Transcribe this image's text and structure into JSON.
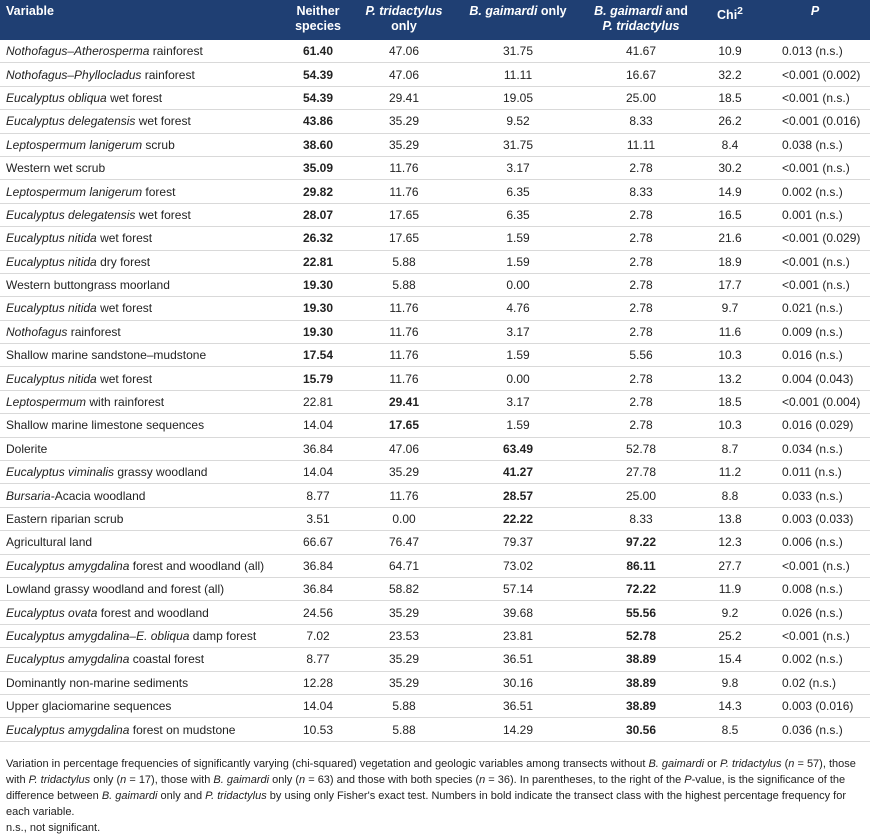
{
  "headers": [
    {
      "html": "Variable"
    },
    {
      "html": "Neither<br>species"
    },
    {
      "html": "<i>P. tridactylus</i><br>only"
    },
    {
      "html": "<i>B. gaimardi</i> only"
    },
    {
      "html": "<i>B. gaimardi</i> and<br><i>P. tridactylus</i>"
    },
    {
      "html": "Chi<sup>2</sup>"
    },
    {
      "html": "<i>P</i>"
    }
  ],
  "rows": [
    {
      "var": "<i>Nothofagus–Atherosperma</i> rainforest",
      "vals": [
        "61.40",
        "47.06",
        "31.75",
        "41.67"
      ],
      "bold": 0,
      "chi": "10.9",
      "p": "0.013 (n.s.)"
    },
    {
      "var": "<i>Nothofagus–Phyllocladus</i> rainforest",
      "vals": [
        "54.39",
        "47.06",
        "11.11",
        "16.67"
      ],
      "bold": 0,
      "chi": "32.2",
      "p": "<0.001 (0.002)"
    },
    {
      "var": "<i>Eucalyptus obliqua</i> wet forest",
      "vals": [
        "54.39",
        "29.41",
        "19.05",
        "25.00"
      ],
      "bold": 0,
      "chi": "18.5",
      "p": "<0.001 (n.s.)"
    },
    {
      "var": "<i>Eucalyptus delegatensis</i> wet forest",
      "vals": [
        "43.86",
        "35.29",
        "9.52",
        "8.33"
      ],
      "bold": 0,
      "chi": "26.2",
      "p": "<0.001 (0.016)"
    },
    {
      "var": "<i>Leptospermum lanigerum</i> scrub",
      "vals": [
        "38.60",
        "35.29",
        "31.75",
        "11.11"
      ],
      "bold": 0,
      "chi": "8.4",
      "p": "0.038 (n.s.)"
    },
    {
      "var": "Western wet scrub",
      "vals": [
        "35.09",
        "11.76",
        "3.17",
        "2.78"
      ],
      "bold": 0,
      "chi": "30.2",
      "p": "<0.001 (n.s.)"
    },
    {
      "var": "<i>Leptospermum lanigerum</i> forest",
      "vals": [
        "29.82",
        "11.76",
        "6.35",
        "8.33"
      ],
      "bold": 0,
      "chi": "14.9",
      "p": "0.002 (n.s.)"
    },
    {
      "var": "<i>Eucalyptus delegatensis</i> wet forest",
      "vals": [
        "28.07",
        "17.65",
        "6.35",
        "2.78"
      ],
      "bold": 0,
      "chi": "16.5",
      "p": "0.001 (n.s.)"
    },
    {
      "var": "<i>Eucalyptus nitida</i> wet forest",
      "vals": [
        "26.32",
        "17.65",
        "1.59",
        "2.78"
      ],
      "bold": 0,
      "chi": "21.6",
      "p": "<0.001 (0.029)"
    },
    {
      "var": "<i>Eucalyptus nitida</i> dry forest",
      "vals": [
        "22.81",
        "5.88",
        "1.59",
        "2.78"
      ],
      "bold": 0,
      "chi": "18.9",
      "p": "<0.001 (n.s.)"
    },
    {
      "var": "Western buttongrass moorland",
      "vals": [
        "19.30",
        "5.88",
        "0.00",
        "2.78"
      ],
      "bold": 0,
      "chi": "17.7",
      "p": "<0.001 (n.s.)"
    },
    {
      "var": "<i>Eucalyptus nitida</i> wet forest",
      "vals": [
        "19.30",
        "11.76",
        "4.76",
        "2.78"
      ],
      "bold": 0,
      "chi": "9.7",
      "p": "0.021 (n.s.)"
    },
    {
      "var": "<i>Nothofagus</i> rainforest",
      "vals": [
        "19.30",
        "11.76",
        "3.17",
        "2.78"
      ],
      "bold": 0,
      "chi": "11.6",
      "p": "0.009 (n.s.)"
    },
    {
      "var": "Shallow marine sandstone–mudstone",
      "vals": [
        "17.54",
        "11.76",
        "1.59",
        "5.56"
      ],
      "bold": 0,
      "chi": "10.3",
      "p": "0.016 (n.s.)"
    },
    {
      "var": "<i>Eucalyptus nitida</i> wet forest",
      "vals": [
        "15.79",
        "11.76",
        "0.00",
        "2.78"
      ],
      "bold": 0,
      "chi": "13.2",
      "p": "0.004 (0.043)"
    },
    {
      "var": "<i>Leptospermum</i> with rainforest",
      "vals": [
        "22.81",
        "29.41",
        "3.17",
        "2.78"
      ],
      "bold": 1,
      "chi": "18.5",
      "p": "<0.001 (0.004)"
    },
    {
      "var": "Shallow marine limestone sequences",
      "vals": [
        "14.04",
        "17.65",
        "1.59",
        "2.78"
      ],
      "bold": 1,
      "chi": "10.3",
      "p": "0.016 (0.029)"
    },
    {
      "var": "Dolerite",
      "vals": [
        "36.84",
        "47.06",
        "63.49",
        "52.78"
      ],
      "bold": 2,
      "chi": "8.7",
      "p": "0.034 (n.s.)"
    },
    {
      "var": "<i>Eucalyptus viminalis</i> grassy woodland",
      "vals": [
        "14.04",
        "35.29",
        "41.27",
        "27.78"
      ],
      "bold": 2,
      "chi": "11.2",
      "p": "0.011 (n.s.)"
    },
    {
      "var": "<i>Bursaria-</i>Acacia woodland",
      "vals": [
        "8.77",
        "11.76",
        "28.57",
        "25.00"
      ],
      "bold": 2,
      "chi": "8.8",
      "p": "0.033 (n.s.)"
    },
    {
      "var": "Eastern riparian scrub",
      "vals": [
        "3.51",
        "0.00",
        "22.22",
        "8.33"
      ],
      "bold": 2,
      "chi": "13.8",
      "p": "0.003 (0.033)"
    },
    {
      "var": "Agricultural land",
      "vals": [
        "66.67",
        "76.47",
        "79.37",
        "97.22"
      ],
      "bold": 3,
      "chi": "12.3",
      "p": "0.006 (n.s.)"
    },
    {
      "var": "<i>Eucalyptus amygdalina</i> forest and woodland (all)",
      "vals": [
        "36.84",
        "64.71",
        "73.02",
        "86.11"
      ],
      "bold": 3,
      "chi": "27.7",
      "p": "<0.001 (n.s.)"
    },
    {
      "var": "Lowland grassy woodland and forest (all)",
      "vals": [
        "36.84",
        "58.82",
        "57.14",
        "72.22"
      ],
      "bold": 3,
      "chi": "11.9",
      "p": "0.008 (n.s.)"
    },
    {
      "var": "<i>Eucalyptus ovata</i> forest and woodland",
      "vals": [
        "24.56",
        "35.29",
        "39.68",
        "55.56"
      ],
      "bold": 3,
      "chi": "9.2",
      "p": "0.026 (n.s.)"
    },
    {
      "var": "<i>Eucalyptus amygdalina–E. obliqua</i> damp forest",
      "vals": [
        "7.02",
        "23.53",
        "23.81",
        "52.78"
      ],
      "bold": 3,
      "chi": "25.2",
      "p": "<0.001 (n.s.)"
    },
    {
      "var": "<i>Eucalyptus amygdalina</i> coastal forest",
      "vals": [
        "8.77",
        "35.29",
        "36.51",
        "38.89"
      ],
      "bold": 3,
      "chi": "15.4",
      "p": "0.002 (n.s.)"
    },
    {
      "var": "Dominantly non-marine sediments",
      "vals": [
        "12.28",
        "35.29",
        "30.16",
        "38.89"
      ],
      "bold": 3,
      "chi": "9.8",
      "p": "0.02 (n.s.)"
    },
    {
      "var": "Upper glaciomarine sequences",
      "vals": [
        "14.04",
        "5.88",
        "36.51",
        "38.89"
      ],
      "bold": 3,
      "chi": "14.3",
      "p": "0.003 (0.016)"
    },
    {
      "var": "<i>Eucalyptus amygdalina</i> forest on mudstone",
      "vals": [
        "10.53",
        "5.88",
        "14.29",
        "30.56"
      ],
      "bold": 3,
      "chi": "8.5",
      "p": "0.036 (n.s.)"
    }
  ],
  "note_html": "Variation in percentage frequencies of significantly varying (chi-squared) vegetation and geologic variables among transects without <i>B. gaimardi</i> or <i>P. tridactylus</i> (<i>n</i> = 57), those with <i>P. tridactylus</i> only (<i>n</i> = 17), those with <i>B. gaimardi</i> only (<i>n</i> = 63) and those with both species (<i>n</i> = 36). In parentheses, to the right of the <i>P</i>-value, is the significance of the difference between <i>B. gaimardi</i> only and <i>P. tridactylus</i> by using only Fisher's exact test. Numbers in bold indicate the transect class with the highest percentage frequency for each variable.",
  "abbrev": "n.s., not significant."
}
